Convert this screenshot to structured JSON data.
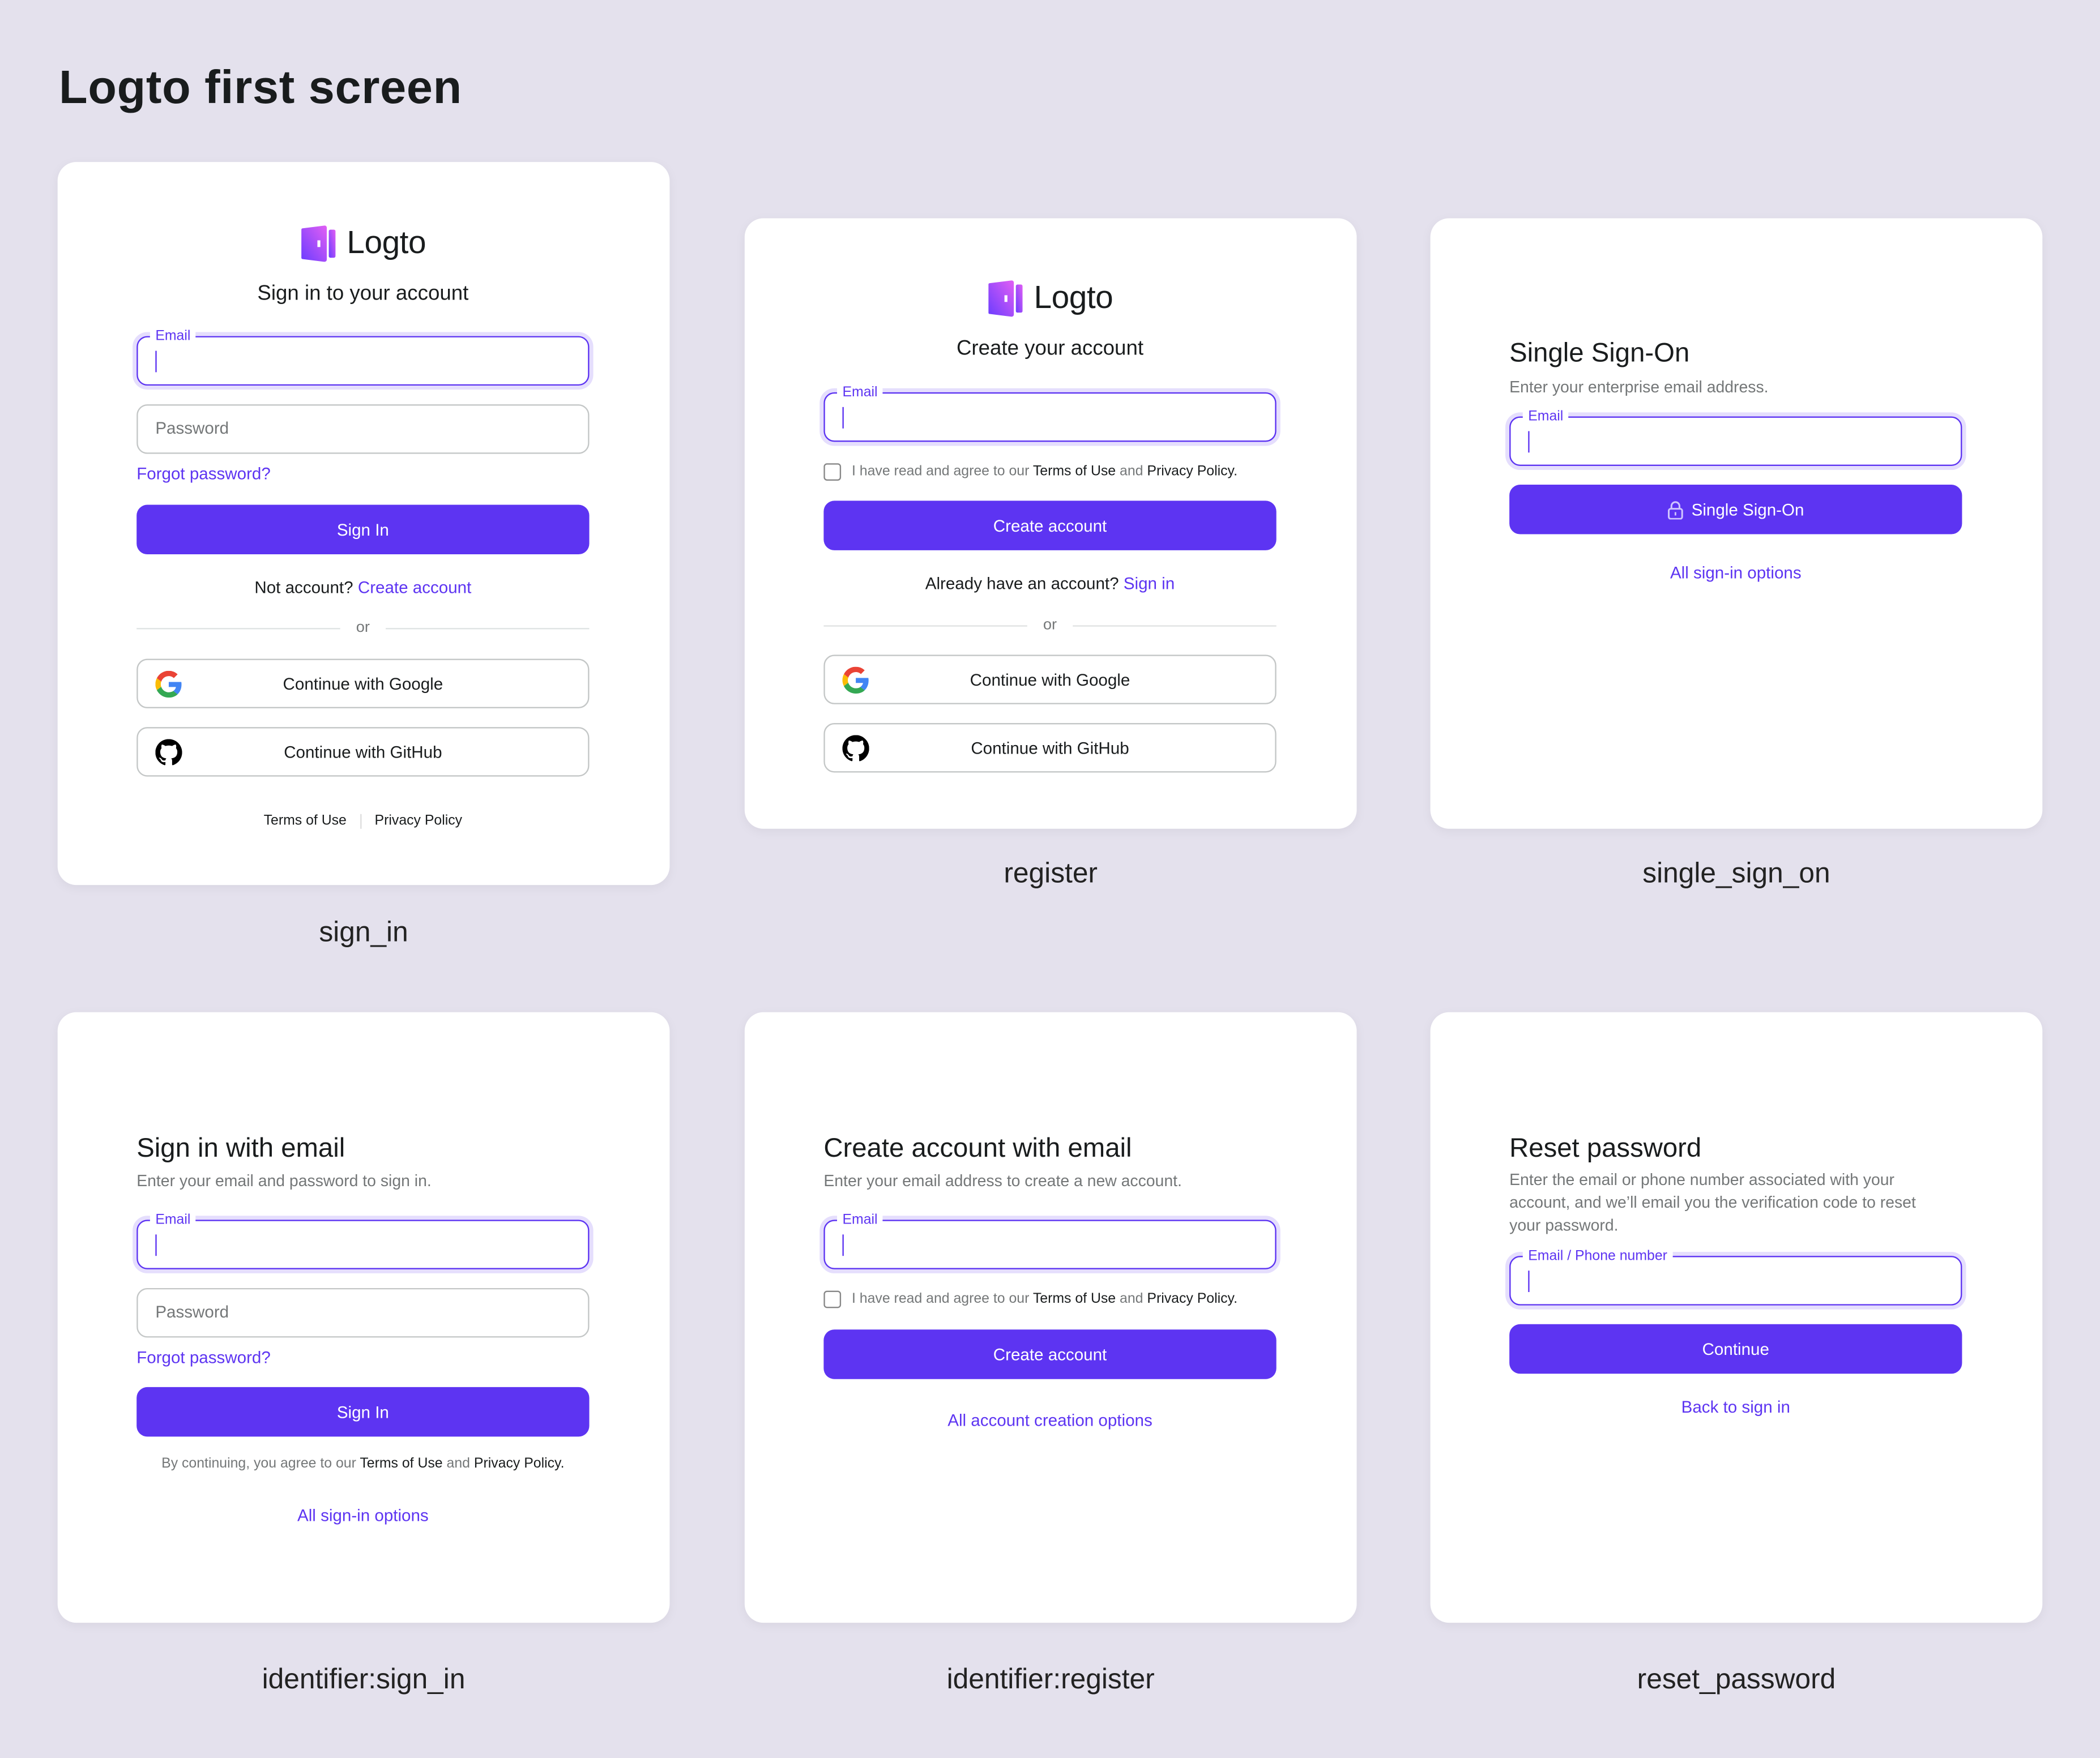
{
  "page": {
    "title": "Logto first screen"
  },
  "brand": {
    "name": "Logto",
    "accent": "#5d34f2",
    "background": "#e4e1ed"
  },
  "sign_in": {
    "caption": "sign_in",
    "heading": "Sign in to your account",
    "email_label": "Email",
    "password_placeholder": "Password",
    "forgot": "Forgot password?",
    "submit": "Sign In",
    "no_account": "Not account?",
    "create_link": "Create account",
    "or": "or",
    "google": "Continue with Google",
    "github": "Continue with GitHub",
    "terms": "Terms of Use",
    "privacy": "Privacy Policy"
  },
  "register": {
    "caption": "register",
    "heading": "Create your account",
    "email_label": "Email",
    "agree_prefix": "I have read and agree to our",
    "terms": "Terms of Use",
    "and": "and",
    "privacy": "Privacy Policy.",
    "submit": "Create account",
    "have_account": "Already have an account?",
    "sign_in_link": "Sign in",
    "or": "or",
    "google": "Continue with Google",
    "github": "Continue with GitHub"
  },
  "single_sign_on": {
    "caption": "single_sign_on",
    "heading": "Single Sign-On",
    "subtitle": "Enter your enterprise email address.",
    "email_label": "Email",
    "submit": "Single Sign-On",
    "submit_icon": "lock-icon",
    "link": "All sign-in options"
  },
  "identifier_sign_in": {
    "caption": "identifier:sign_in",
    "heading": "Sign in with email",
    "subtitle": "Enter your email and password to sign in.",
    "email_label": "Email",
    "password_placeholder": "Password",
    "forgot": "Forgot password?",
    "submit": "Sign In",
    "agree_prefix": "By continuing, you agree to our",
    "terms": "Terms of Use",
    "and": "and",
    "privacy": "Privacy Policy.",
    "link": "All sign-in options"
  },
  "identifier_register": {
    "caption": "identifier:register",
    "heading": "Create account with email",
    "subtitle": "Enter your email address to create a new account.",
    "email_label": "Email",
    "agree_prefix": "I have read and agree to our",
    "terms": "Terms of Use",
    "and": "and",
    "privacy": "Privacy Policy.",
    "submit": "Create account",
    "link": "All account creation options"
  },
  "reset_password": {
    "caption": "reset_password",
    "heading": "Reset password",
    "subtitle": "Enter the email or phone number associated with your account, and we’ll email you the verification code to reset your password.",
    "field_label": "Email / Phone number",
    "submit": "Continue",
    "link": "Back to sign in"
  }
}
